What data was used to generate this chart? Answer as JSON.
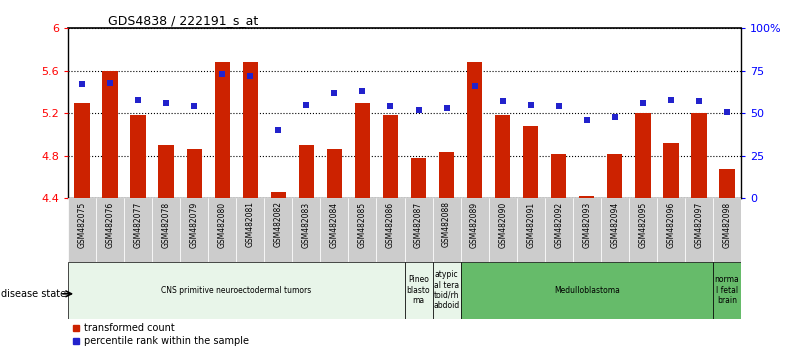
{
  "title": "GDS4838 / 222191_s_at",
  "samples": [
    "GSM482075",
    "GSM482076",
    "GSM482077",
    "GSM482078",
    "GSM482079",
    "GSM482080",
    "GSM482081",
    "GSM482082",
    "GSM482083",
    "GSM482084",
    "GSM482085",
    "GSM482086",
    "GSM482087",
    "GSM482088",
    "GSM482089",
    "GSM482090",
    "GSM482091",
    "GSM482092",
    "GSM482093",
    "GSM482094",
    "GSM482095",
    "GSM482096",
    "GSM482097",
    "GSM482098"
  ],
  "bar_values": [
    5.3,
    5.6,
    5.18,
    4.9,
    4.86,
    5.68,
    5.68,
    4.46,
    4.9,
    4.86,
    5.3,
    5.18,
    4.78,
    4.84,
    5.68,
    5.18,
    5.08,
    4.82,
    4.42,
    4.82,
    5.2,
    4.92,
    5.2,
    4.68
  ],
  "percentile_values": [
    67,
    68,
    58,
    56,
    54,
    73,
    72,
    40,
    55,
    62,
    63,
    54,
    52,
    53,
    66,
    57,
    55,
    54,
    46,
    48,
    56,
    58,
    57,
    51
  ],
  "ylim_left": [
    4.4,
    6.0
  ],
  "ylim_right": [
    0,
    100
  ],
  "yticks_left": [
    4.4,
    4.8,
    5.2,
    5.6,
    6.0
  ],
  "ytick_labels_left": [
    "4.4",
    "4.8",
    "5.2",
    "5.6",
    "6"
  ],
  "yticks_right": [
    0,
    25,
    50,
    75,
    100
  ],
  "ytick_labels_right": [
    "0",
    "25",
    "50",
    "75",
    "100%"
  ],
  "bar_color": "#cc2200",
  "dot_color": "#2222cc",
  "bar_bottom": 4.4,
  "disease_groups": [
    {
      "label": "CNS primitive neuroectodermal tumors",
      "start": 0,
      "end": 12,
      "color": "#e8f5e9"
    },
    {
      "label": "Pineo\nblasto\nma",
      "start": 12,
      "end": 13,
      "color": "#e8f5e9"
    },
    {
      "label": "atypic\nal tera\ntoid/rh\nabdoid",
      "start": 13,
      "end": 14,
      "color": "#e8f5e9"
    },
    {
      "label": "Medulloblastoma",
      "start": 14,
      "end": 23,
      "color": "#66bb6a"
    },
    {
      "label": "norma\nl fetal\nbrain",
      "start": 23,
      "end": 24,
      "color": "#66bb6a"
    }
  ],
  "legend_items": [
    {
      "label": "transformed count",
      "color": "#cc2200"
    },
    {
      "label": "percentile rank within the sample",
      "color": "#2222cc"
    }
  ],
  "tick_bg_color": "#cccccc",
  "bar_width": 0.55
}
